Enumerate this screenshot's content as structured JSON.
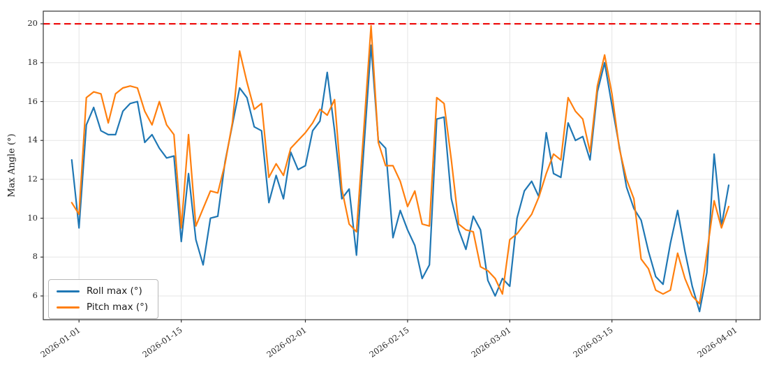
{
  "chart_data": {
    "type": "line",
    "title": "",
    "xlabel": "",
    "ylabel": "Max Angle (°)",
    "x_unit": "daily samples, day index 0 = 2025-12-31",
    "x_tick_labels": [
      "2026-01-01",
      "2026-01-15",
      "2026-02-01",
      "2026-02-15",
      "2026-03-01",
      "2026-03-15",
      "2026-04-01"
    ],
    "x_tick_days": [
      1,
      15,
      32,
      46,
      60,
      74,
      91
    ],
    "xlim_days": [
      -3.9,
      94.3
    ],
    "y_ticks": [
      6,
      8,
      10,
      12,
      14,
      16,
      18,
      20
    ],
    "ylim": [
      4.78,
      20.65
    ],
    "grid": true,
    "grid_color": "#e5e5e5",
    "axis_color": "#333333",
    "tick_text_color": "#262626",
    "legend_position": "lower-left",
    "threshold_line": {
      "y": 20,
      "color": "#ee1111",
      "style": "dashed",
      "width": 2.2
    },
    "series": [
      {
        "name": "Roll max (°)",
        "color": "#1f77b4",
        "values": [
          13.0,
          9.5,
          14.8,
          15.7,
          14.5,
          14.3,
          14.3,
          15.5,
          15.9,
          16.0,
          13.9,
          14.3,
          13.6,
          13.1,
          13.2,
          8.8,
          12.3,
          8.9,
          7.6,
          10.0,
          10.1,
          12.9,
          14.8,
          16.7,
          16.2,
          14.7,
          14.5,
          10.8,
          12.2,
          11.0,
          13.4,
          12.5,
          12.7,
          14.5,
          15.0,
          17.5,
          14.5,
          11.0,
          11.5,
          8.1,
          13.5,
          18.9,
          14.0,
          13.6,
          9.0,
          10.4,
          9.4,
          8.6,
          6.9,
          7.6,
          15.1,
          15.2,
          11.0,
          9.4,
          8.4,
          10.1,
          9.4,
          6.8,
          6.0,
          6.9,
          6.5,
          10.0,
          11.4,
          11.9,
          11.1,
          14.4,
          12.3,
          12.1,
          14.9,
          14.0,
          14.2,
          13.0,
          16.5,
          18.0,
          15.8,
          13.7,
          11.6,
          10.5,
          9.9,
          8.3,
          7.0,
          6.6,
          8.7,
          10.4,
          8.3,
          6.5,
          5.2,
          7.2,
          13.3,
          9.6,
          11.7
        ]
      },
      {
        "name": "Pitch max (°)",
        "color": "#ff7f0e",
        "values": [
          10.8,
          10.2,
          16.2,
          16.5,
          16.4,
          14.9,
          16.4,
          16.7,
          16.8,
          16.7,
          15.5,
          14.8,
          16.0,
          14.8,
          14.3,
          9.5,
          14.3,
          9.6,
          10.5,
          11.4,
          11.3,
          12.8,
          14.9,
          18.6,
          17.0,
          15.6,
          15.9,
          12.1,
          12.8,
          12.2,
          13.6,
          14.0,
          14.4,
          14.9,
          15.6,
          15.3,
          16.1,
          11.5,
          9.7,
          9.3,
          14.5,
          19.9,
          13.9,
          12.7,
          12.7,
          11.9,
          10.6,
          11.4,
          9.7,
          9.6,
          16.2,
          15.9,
          13.0,
          9.7,
          9.4,
          9.3,
          7.5,
          7.3,
          6.9,
          6.1,
          8.9,
          9.2,
          9.7,
          10.2,
          11.1,
          12.3,
          13.3,
          13.0,
          16.2,
          15.5,
          15.1,
          13.4,
          16.8,
          18.4,
          16.4,
          13.6,
          12.0,
          11.0,
          7.9,
          7.4,
          6.3,
          6.1,
          6.3,
          8.2,
          6.9,
          6.0,
          5.6,
          8.2,
          10.9,
          9.5,
          10.6
        ]
      }
    ]
  }
}
